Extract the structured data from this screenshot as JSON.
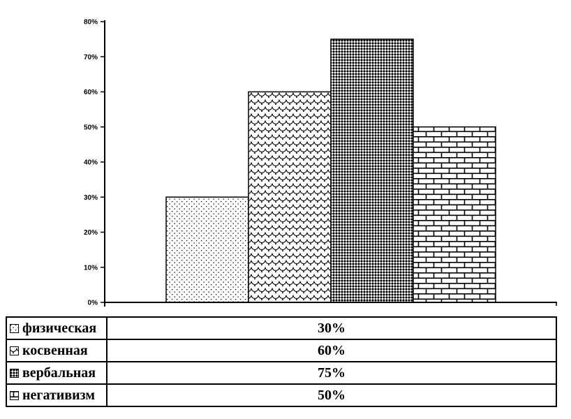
{
  "chart_data": {
    "type": "bar",
    "categories": [
      "физическая",
      "косвенная",
      "вербальная",
      "негативизм"
    ],
    "values": [
      30,
      60,
      75,
      50
    ],
    "value_labels": [
      "30%",
      "60%",
      "75%",
      "50%"
    ],
    "patterns": [
      "dots",
      "scales",
      "diamonds",
      "bricks"
    ],
    "title": "",
    "xlabel": "",
    "ylabel": "",
    "ylim": [
      0,
      80
    ],
    "ytick_step": 10,
    "ytick_labels": [
      "0%",
      "10%",
      "20%",
      "30%",
      "40%",
      "50%",
      "60%",
      "70%",
      "80%"
    ],
    "grid": false,
    "legend_position": "bottom-table"
  },
  "colors": {
    "foreground": "#000000",
    "background": "#ffffff"
  }
}
